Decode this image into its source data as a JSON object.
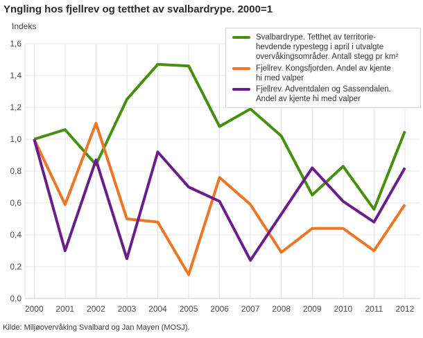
{
  "chart_data": {
    "type": "line",
    "title": "Yngling hos fjellrev og tetthet av svalbardrype. 2000=1",
    "ylabel": "Indeks",
    "xlabel": "",
    "ylim": [
      0,
      1.6
    ],
    "y_ticks": [
      0,
      0.2,
      0.4,
      0.6,
      0.8,
      1.0,
      1.2,
      1.4,
      1.6
    ],
    "y_tick_labels": [
      "0,0",
      "0,2",
      "0,4",
      "0,6",
      "0,8",
      "1,0",
      "1,2",
      "1,4",
      "1,6"
    ],
    "x": [
      2000,
      2001,
      2002,
      2003,
      2004,
      2005,
      2006,
      2007,
      2008,
      2009,
      2010,
      2011,
      2012
    ],
    "grid": true,
    "legend_position": "top-right",
    "series": [
      {
        "id": "svalbardrype",
        "name": "Svalbardrype. Tetthet av territorie-hevdende rypestegg i april i utvalgte overvåkingsområder. Antall stegg pr km²",
        "label_lines": [
          "Svalbardrype. Tetthet av territorie-",
          "hevdende rypestegg i april i utvalgte",
          "overvåkingsområder. Antall stegg pr km²"
        ],
        "color": "#46900f",
        "values": [
          1.0,
          1.06,
          0.84,
          1.25,
          1.47,
          1.46,
          1.08,
          1.19,
          1.02,
          0.65,
          0.83,
          0.56,
          1.05
        ]
      },
      {
        "id": "fjellrev-kongsfjorden",
        "name": "Fjellrev. Kongsfjorden. Andel av kjente hi med valper",
        "label_lines": [
          "Fjellrev. Kongsfjorden. Andel av kjente",
          "hi med valper"
        ],
        "color": "#ee7524",
        "values": [
          1.0,
          0.59,
          1.1,
          0.5,
          0.48,
          0.15,
          0.76,
          0.59,
          0.29,
          0.44,
          0.44,
          0.3,
          0.59
        ]
      },
      {
        "id": "fjellrev-adventdalen-sassendalen",
        "name": "Fjellrev. Adventdalen og Sassendalen. Andel av kjente hi med valper",
        "label_lines": [
          "Fjellrev. Adventdalen og Sassendalen.",
          "Andel av kjente hi med valper"
        ],
        "color": "#6a1e8c",
        "values": [
          1.0,
          0.3,
          0.87,
          0.25,
          0.92,
          0.7,
          0.61,
          0.24,
          0.53,
          0.82,
          0.61,
          0.48,
          0.82
        ]
      }
    ]
  },
  "source": "Kilde: Miljøovervåking Svalbard og Jan Mayen (MOSJ).",
  "colors": {
    "grid": "#e6e6e6",
    "axis_bottom": "#c8c8c8",
    "axis_left": "#e0e0e0",
    "tick_text": "#4a4a4a",
    "title_text": "#2a2a2a",
    "legend_border": "#d4d4d4"
  }
}
